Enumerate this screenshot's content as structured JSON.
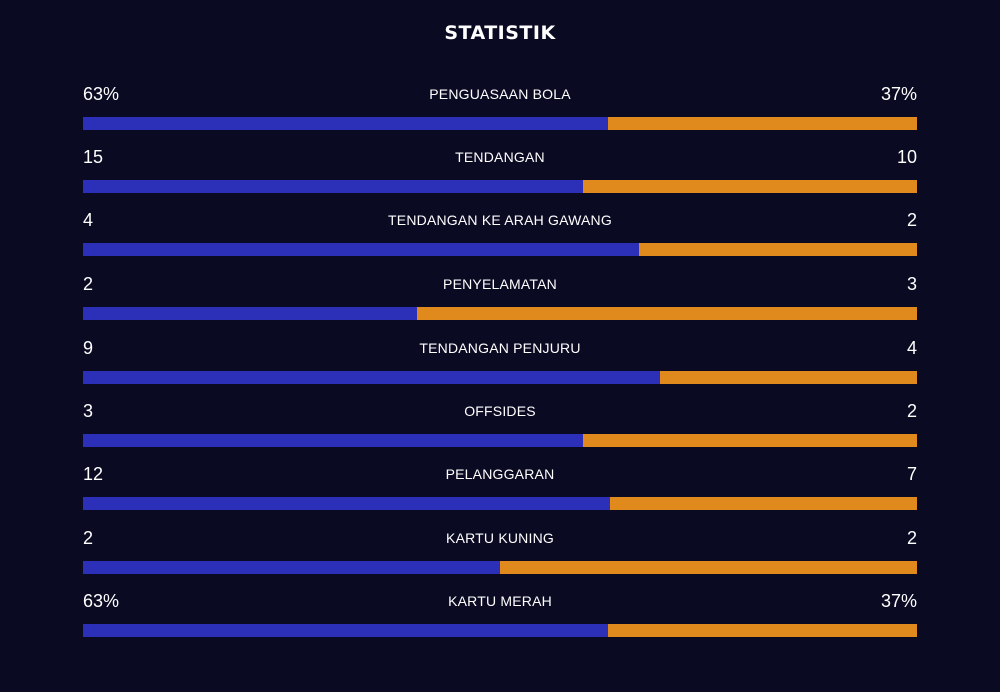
{
  "title": "STATISTIK",
  "colors": {
    "background": "#0a0a23",
    "home": "#2c2fb8",
    "away": "#e08a1e",
    "text": "#ffffff"
  },
  "stats": [
    {
      "label": "PENGUASAAN BOLA",
      "home": "63%",
      "away": "37%",
      "home_share": 0.63
    },
    {
      "label": "TENDANGAN",
      "home": "15",
      "away": "10",
      "home_share": 0.6
    },
    {
      "label": "TENDANGAN KE ARAH GAWANG",
      "home": "4",
      "away": "2",
      "home_share": 0.667
    },
    {
      "label": "PENYELAMATAN",
      "home": "2",
      "away": "3",
      "home_share": 0.4
    },
    {
      "label": "TENDANGAN PENJURU",
      "home": "9",
      "away": "4",
      "home_share": 0.692
    },
    {
      "label": "OFFSIDES",
      "home": "3",
      "away": "2",
      "home_share": 0.6
    },
    {
      "label": "PELANGGARAN",
      "home": "12",
      "away": "7",
      "home_share": 0.632
    },
    {
      "label": "KARTU KUNING",
      "home": "2",
      "away": "2",
      "home_share": 0.5
    },
    {
      "label": "KARTU MERAH",
      "home": "63%",
      "away": "37%",
      "home_share": 0.63
    }
  ]
}
